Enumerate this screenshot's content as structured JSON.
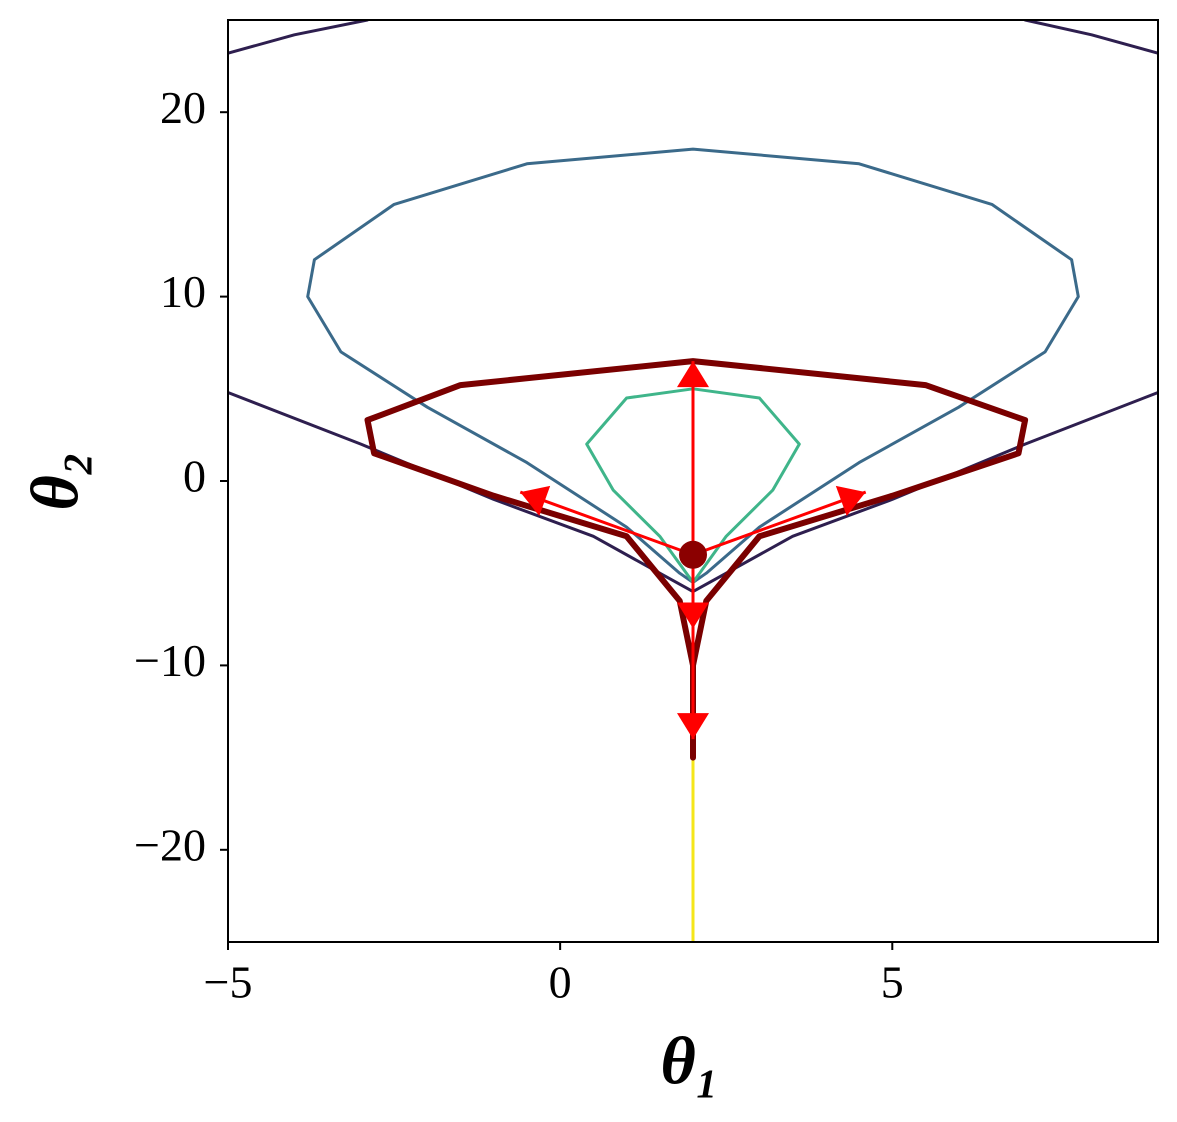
{
  "chart_data": {
    "type": "contour",
    "xlabel": "θ₁",
    "ylabel": "θ₂",
    "xlim": [
      -5,
      9
    ],
    "ylim": [
      -25,
      25
    ],
    "xticks": [
      {
        "value": -5,
        "label": "−5"
      },
      0,
      5
    ],
    "yticks": [
      {
        "value": -20,
        "label": "−20"
      },
      {
        "value": -10,
        "label": "−10"
      },
      0,
      10,
      20
    ],
    "series": [
      {
        "color": "#2e1f4f",
        "width": 3,
        "x": [
          -5,
          -4,
          -2.9,
          null,
          7,
          8,
          9
        ],
        "y": [
          23.2,
          24.2,
          25,
          null,
          25,
          24.2,
          23.2
        ]
      },
      {
        "color": "#2e1f4f",
        "width": 3,
        "x": [
          -5,
          -3,
          -1,
          0.5,
          1.5,
          2,
          2.5,
          3.5,
          5,
          7,
          9
        ],
        "y": [
          4.8,
          2,
          -1,
          -3,
          -5,
          -6,
          -5,
          -3,
          -1,
          2,
          4.8
        ]
      },
      {
        "color": "#3b6a8a",
        "width": 3,
        "x": [
          2,
          4.5,
          6.5,
          7.7,
          7.8,
          7.3,
          6,
          4.5,
          3,
          2.2,
          2,
          1.8,
          1,
          -0.5,
          -2,
          -3.3,
          -3.8,
          -3.7,
          -2.5,
          -0.5,
          2
        ],
        "y": [
          18,
          17.2,
          15,
          12,
          10,
          7,
          4,
          1,
          -2.5,
          -5,
          -5.5,
          -5,
          -2.5,
          1,
          4,
          7,
          10,
          12,
          15,
          17.2,
          18
        ]
      },
      {
        "color": "#3fb58a",
        "width": 3,
        "x": [
          2,
          3,
          3.6,
          3.2,
          2.5,
          2.1,
          2,
          1.9,
          1.5,
          0.8,
          0.4,
          1,
          2
        ],
        "y": [
          5,
          4.5,
          2,
          -0.5,
          -3,
          -5,
          -5.5,
          -5,
          -3,
          -0.5,
          2,
          4.5,
          5
        ]
      },
      {
        "color": "#f5e61a",
        "width": 3,
        "x": [
          2,
          2
        ],
        "y": [
          -15,
          -25
        ]
      },
      {
        "color": "#7a0000",
        "width": 6,
        "x": [
          2,
          2,
          1.8,
          1,
          -1,
          -2.8,
          -2.9,
          -1.5,
          2,
          5.5,
          7,
          6.9,
          5,
          3,
          2.2,
          2
        ],
        "y": [
          -15,
          -10,
          -6.5,
          -3,
          -0.8,
          1.5,
          3.3,
          5.2,
          6.5,
          5.2,
          3.3,
          1.5,
          -0.8,
          -3,
          -6.5,
          -10
        ]
      }
    ],
    "arrow_color": "#ff0000",
    "arrows": [
      {
        "x": [
          2,
          2
        ],
        "y": [
          -4,
          6.5
        ]
      },
      {
        "x": [
          2,
          -0.6
        ],
        "y": [
          -4,
          -0.6
        ]
      },
      {
        "x": [
          2,
          4.6
        ],
        "y": [
          -4,
          -0.6
        ]
      },
      {
        "x": [
          2,
          2
        ],
        "y": [
          -4,
          -8
        ]
      },
      {
        "x": [
          2,
          2
        ],
        "y": [
          -4,
          -14
        ]
      }
    ],
    "start": {
      "x": 2,
      "y": -4,
      "color": "#8b0000"
    }
  }
}
